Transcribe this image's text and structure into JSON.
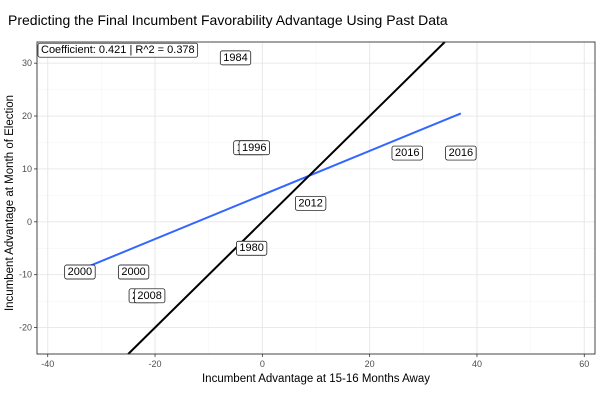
{
  "chart_data": {
    "type": "scatter",
    "title": "Predicting the Final Incumbent Favorability Advantage Using Past Data",
    "xlabel": "Incumbent Advantage at 15-16 Months Away",
    "ylabel": "Incumbent Advantage at Month of Election",
    "xlim": [
      -42,
      62
    ],
    "ylim": [
      -25,
      34
    ],
    "x_ticks": [
      -40,
      -20,
      0,
      20,
      40,
      60
    ],
    "y_ticks": [
      -20,
      -10,
      0,
      10,
      20,
      30
    ],
    "grid": true,
    "annotation": "Coefficient: 0.421 | R^2 = 0.378",
    "points": [
      {
        "label": "1984",
        "x": -5,
        "y": 31
      },
      {
        "label": "1996",
        "x": -2.5,
        "y": 14
      },
      {
        "label": "1996",
        "x": -1.5,
        "y": 14
      },
      {
        "label": "2016",
        "x": 27,
        "y": 13
      },
      {
        "label": "2016",
        "x": 37,
        "y": 13
      },
      {
        "label": "2012",
        "x": 9,
        "y": 3.5
      },
      {
        "label": "1980",
        "x": -2,
        "y": -5
      },
      {
        "label": "2000",
        "x": -34,
        "y": -9.5
      },
      {
        "label": "2000",
        "x": -24,
        "y": -9.5
      },
      {
        "label": "2008",
        "x": -22,
        "y": -14
      },
      {
        "label": "2008",
        "x": -21,
        "y": -14
      }
    ],
    "lines": [
      {
        "name": "fit",
        "color": "#3366ff",
        "x": [
          -34,
          37
        ],
        "y": [
          -9.1,
          20.5
        ]
      },
      {
        "name": "identity",
        "color": "#000000",
        "x": [
          -25,
          34
        ],
        "y": [
          -25,
          34
        ]
      }
    ]
  }
}
